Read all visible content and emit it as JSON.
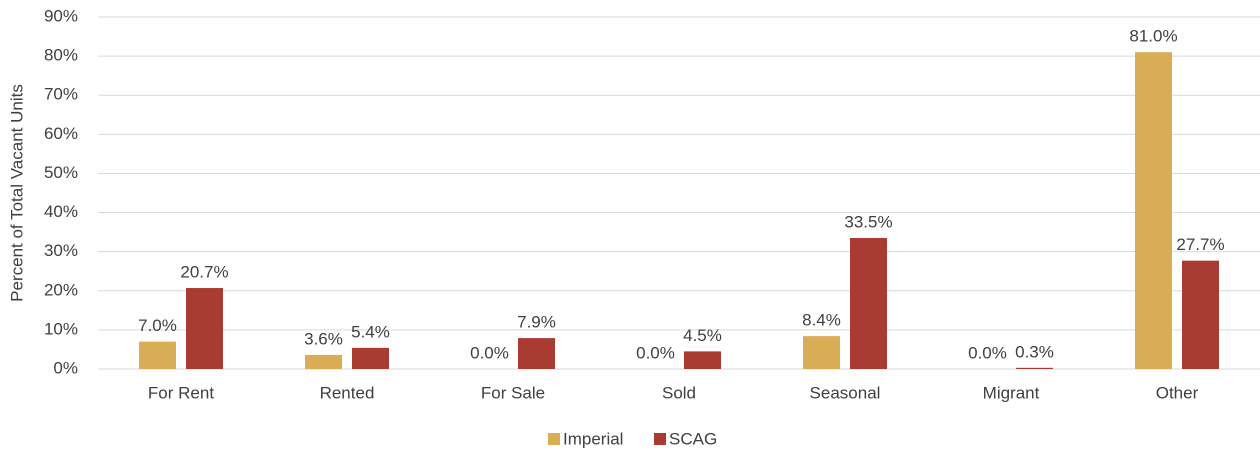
{
  "chart_data": {
    "type": "bar",
    "y_axis_label": "Percent of Total Vacant Units",
    "categories": [
      "For Rent",
      "Rented",
      "For Sale",
      "Sold",
      "Seasonal",
      "Migrant",
      "Other"
    ],
    "series": [
      {
        "name": "Imperial",
        "color": "#d9ad56",
        "values": [
          7.0,
          3.6,
          0.0,
          0.0,
          8.4,
          0.0,
          81.0
        ],
        "value_labels": [
          "7.0%",
          "3.6%",
          "0.0%",
          "0.0%",
          "8.4%",
          "0.0%",
          "81.0%"
        ]
      },
      {
        "name": "SCAG",
        "color": "#a93b32",
        "values": [
          20.7,
          5.4,
          7.9,
          4.5,
          33.5,
          0.3,
          27.7
        ],
        "value_labels": [
          "20.7%",
          "5.4%",
          "7.9%",
          "4.5%",
          "33.5%",
          "0.3%",
          "27.7%"
        ]
      }
    ],
    "ylim": [
      0,
      90
    ],
    "yticks": [
      {
        "value": 0,
        "label": "0%"
      },
      {
        "value": 10,
        "label": "10%"
      },
      {
        "value": 20,
        "label": "20%"
      },
      {
        "value": 30,
        "label": "30%"
      },
      {
        "value": 40,
        "label": "40%"
      },
      {
        "value": 50,
        "label": "50%"
      },
      {
        "value": 60,
        "label": "60%"
      },
      {
        "value": 70,
        "label": "70%"
      },
      {
        "value": 80,
        "label": "80%"
      },
      {
        "value": 90,
        "label": "90%"
      }
    ],
    "grid": true,
    "legend": "bottom"
  }
}
